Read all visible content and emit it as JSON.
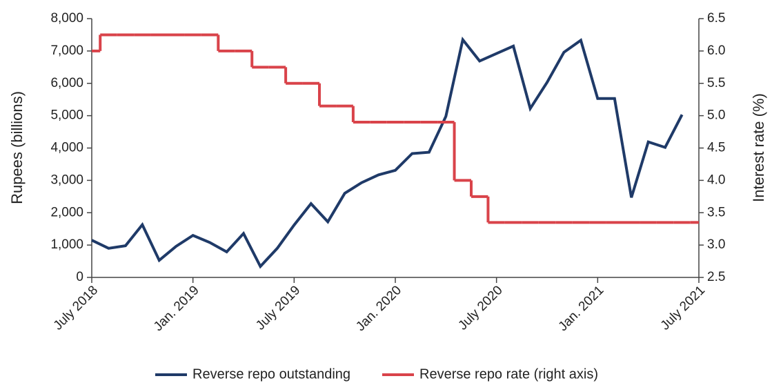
{
  "chart_data": {
    "type": "line",
    "categories": [
      "July 2018",
      null,
      null,
      null,
      null,
      null,
      "Jan. 2019",
      null,
      null,
      null,
      null,
      null,
      "July 2019",
      null,
      null,
      null,
      null,
      null,
      "Jan. 2020",
      null,
      null,
      null,
      null,
      null,
      "July 2020",
      null,
      null,
      null,
      null,
      null,
      "Jan. 2021",
      null,
      null,
      null,
      null,
      null,
      "July 2021"
    ],
    "series": [
      {
        "name": "Reverse repo outstanding",
        "color": "#1f3a68",
        "values": [
          1150,
          900,
          980,
          1630,
          530,
          960,
          1300,
          1080,
          790,
          1360,
          340,
          900,
          1620,
          2280,
          1720,
          2600,
          2930,
          3170,
          3310,
          3830,
          3870,
          4980,
          7350,
          6690,
          6920,
          7150,
          5220,
          6030,
          6960,
          7330,
          5530,
          5530,
          2470,
          4190,
          4020,
          5030,
          null
        ]
      },
      {
        "name": "Reverse repo rate (right axis)",
        "color": "#d9434a",
        "axis": "y2",
        "drawstyle": "steps-mid",
        "values": [
          6.0,
          6.25,
          6.25,
          6.25,
          6.25,
          6.25,
          6.25,
          6.25,
          6.0,
          6.0,
          5.75,
          5.75,
          5.5,
          5.5,
          5.15,
          5.15,
          4.9,
          4.9,
          4.9,
          4.9,
          4.9,
          4.9,
          4.0,
          3.75,
          3.35,
          3.35,
          3.35,
          3.35,
          3.35,
          3.35,
          3.35,
          3.35,
          3.35,
          3.35,
          3.35,
          3.35,
          3.35
        ]
      }
    ],
    "ylabel": "Rupees (billions)",
    "y2label": "Interest rate (%)",
    "ylim": [
      0,
      8000
    ],
    "yticks": [
      0,
      {
        "value": 1000,
        "label": "1,000"
      },
      {
        "value": 2000,
        "label": "2,000"
      },
      {
        "value": 3000,
        "label": "3,000"
      },
      {
        "value": 4000,
        "label": "4,000"
      },
      {
        "value": 5000,
        "label": "5,000"
      },
      {
        "value": 6000,
        "label": "6,000"
      },
      {
        "value": 7000,
        "label": "7,000"
      },
      {
        "value": 8000,
        "label": "8,000"
      }
    ],
    "y2lim": [
      2.5,
      6.5
    ],
    "y2ticks": [
      2.5,
      {
        "value": 3,
        "label": "3.0"
      },
      3.5,
      {
        "value": 4,
        "label": "4.0"
      },
      4.5,
      {
        "value": 5,
        "label": "5.0"
      },
      5.5,
      {
        "value": 6,
        "label": "6.0"
      },
      6.5
    ],
    "grid": false,
    "legend": "bottom"
  }
}
